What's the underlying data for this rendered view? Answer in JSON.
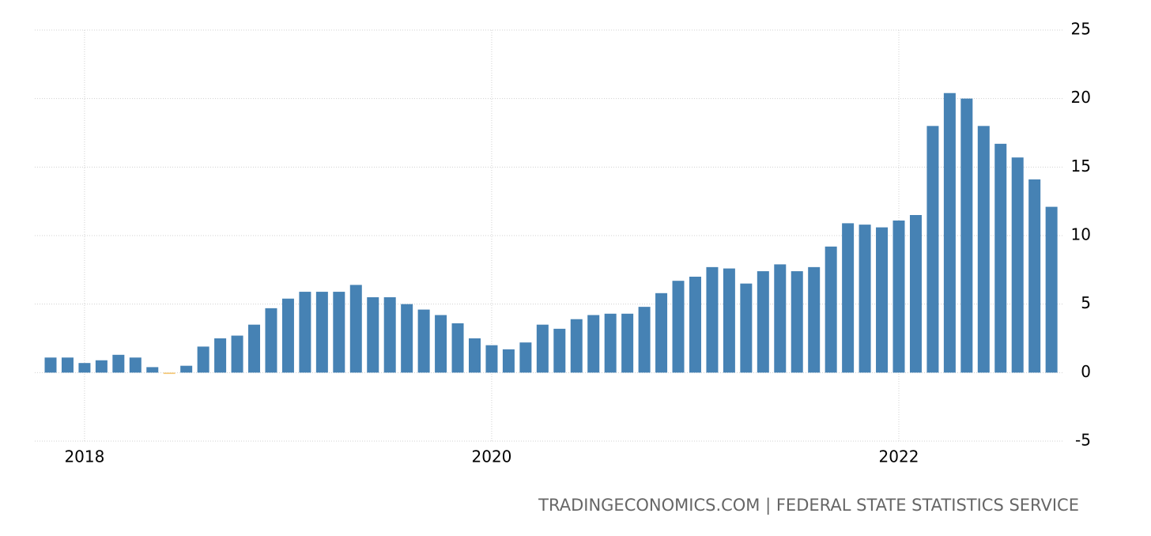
{
  "chart_data": {
    "type": "bar",
    "source": "TRADINGECONOMICS.COM | FEDERAL STATE STATISTICS SERVICE",
    "categories": [
      null,
      null,
      "2018",
      null,
      null,
      null,
      null,
      null,
      null,
      null,
      null,
      null,
      null,
      null,
      null,
      null,
      null,
      null,
      null,
      null,
      null,
      null,
      null,
      null,
      null,
      null,
      "2020",
      null,
      null,
      null,
      null,
      null,
      null,
      null,
      null,
      null,
      null,
      null,
      null,
      null,
      null,
      null,
      null,
      null,
      null,
      null,
      null,
      null,
      null,
      null,
      "2022",
      null,
      null,
      null,
      null,
      null,
      null,
      null,
      null,
      null
    ],
    "values": [
      1.1,
      1.1,
      0.7,
      0.9,
      1.3,
      1.1,
      0.4,
      -0.1,
      0.5,
      1.9,
      2.5,
      2.7,
      3.5,
      4.7,
      5.4,
      5.9,
      5.9,
      5.9,
      6.4,
      5.5,
      5.5,
      5.0,
      4.6,
      4.2,
      3.6,
      2.5,
      2.0,
      1.7,
      2.2,
      3.5,
      3.2,
      3.9,
      4.2,
      4.3,
      4.3,
      4.8,
      5.8,
      6.7,
      7.0,
      7.7,
      7.6,
      6.5,
      7.4,
      7.9,
      7.4,
      7.7,
      9.2,
      10.9,
      10.8,
      10.6,
      11.1,
      11.5,
      18.0,
      20.4,
      20.0,
      18.0,
      16.7,
      15.7,
      14.1,
      12.1
    ],
    "color": "#4682b4",
    "negative_color": "#f5c97a",
    "ylim": [
      -5,
      25
    ],
    "yticks": [
      -5,
      0,
      5,
      10,
      15,
      20,
      25
    ],
    "grid": true
  }
}
